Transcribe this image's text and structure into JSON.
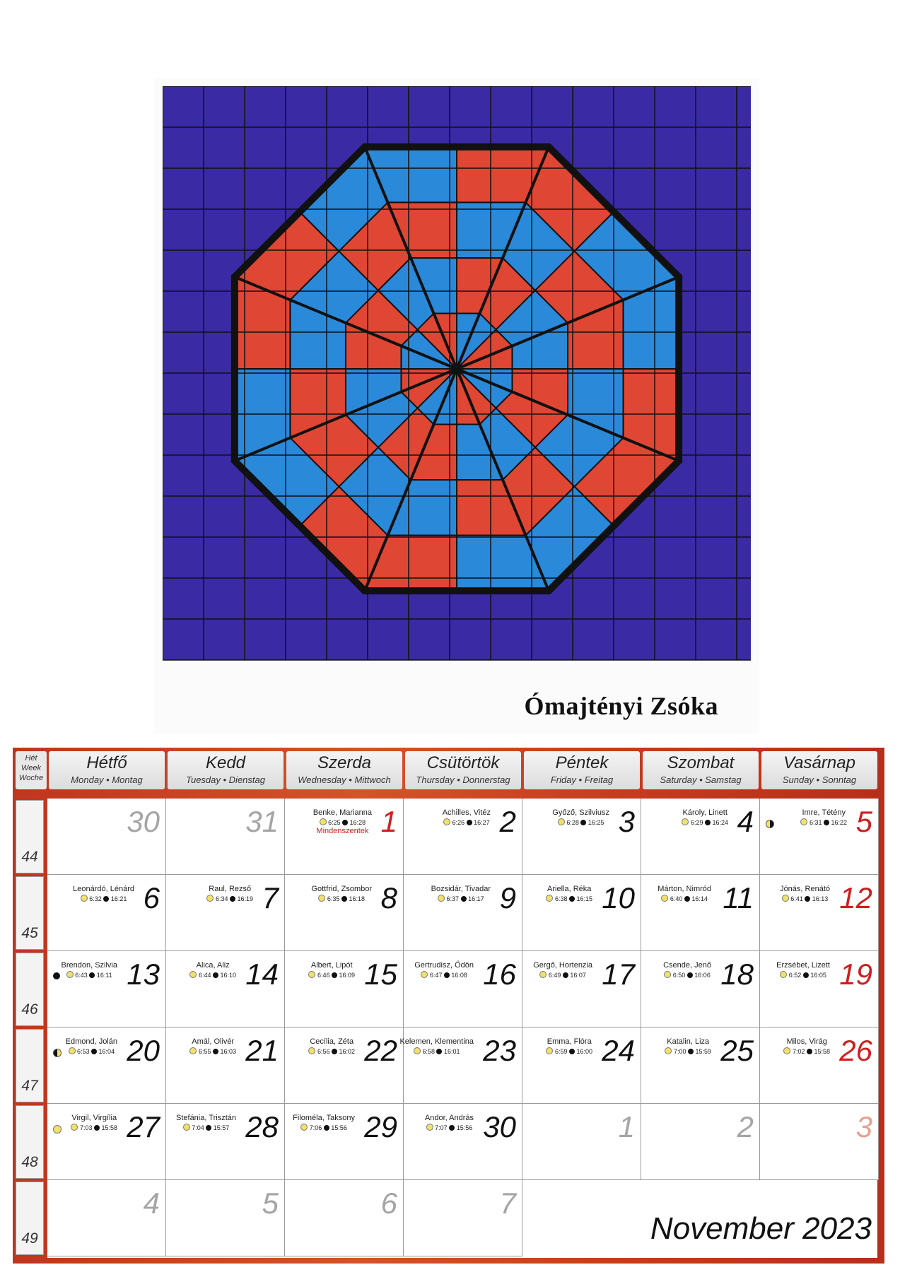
{
  "artwork": {
    "artist": "Ómajtényi Zsóka",
    "colors": {
      "background": "#3a2aa4",
      "red": "#e8482e",
      "blue": "#2a8fdc",
      "dark": "#111111"
    }
  },
  "calendar": {
    "week_header": [
      "Hét",
      "Week",
      "Woche"
    ],
    "days": [
      {
        "hu": "Hétfő",
        "en": "Monday • Montag"
      },
      {
        "hu": "Kedd",
        "en": "Tuesday • Dienstag"
      },
      {
        "hu": "Szerda",
        "en": "Wednesday • Mittwoch"
      },
      {
        "hu": "Csütörtök",
        "en": "Thursday • Donnerstag"
      },
      {
        "hu": "Péntek",
        "en": "Friday • Freitag"
      },
      {
        "hu": "Szombat",
        "en": "Saturday • Samstag"
      },
      {
        "hu": "Vasárnap",
        "en": "Sunday • Sonntag"
      }
    ],
    "weeks": [
      "44",
      "45",
      "46",
      "47",
      "48",
      "49"
    ],
    "month_label": "November 2023",
    "cells": [
      [
        {
          "day": "30",
          "style": "gray"
        },
        {
          "day": "31",
          "style": "gray"
        },
        {
          "day": "1",
          "style": "red",
          "names": "Benke, Marianna",
          "rise": "6:25",
          "set": "16:28",
          "holiday": "Mindenszentek"
        },
        {
          "day": "2",
          "names": "Achilles, Vitéz",
          "rise": "6:26",
          "set": "16:27"
        },
        {
          "day": "3",
          "names": "Győző, Szilviusz",
          "rise": "6:28",
          "set": "16:25"
        },
        {
          "day": "4",
          "names": "Károly, Linett",
          "rise": "6:29",
          "set": "16:24"
        },
        {
          "day": "5",
          "style": "red",
          "names": "Imre, Tétény",
          "rise": "6:31",
          "set": "16:22",
          "moon": "last"
        }
      ],
      [
        {
          "day": "6",
          "names": "Leonárdó, Lénárd",
          "rise": "6:32",
          "set": "16:21"
        },
        {
          "day": "7",
          "names": "Raul, Rezső",
          "rise": "6:34",
          "set": "16:19"
        },
        {
          "day": "8",
          "names": "Gottfrid, Zsombor",
          "rise": "6:35",
          "set": "16:18"
        },
        {
          "day": "9",
          "names": "Bozsidár, Tivadar",
          "rise": "6:37",
          "set": "16:17"
        },
        {
          "day": "10",
          "names": "Ariella, Réka",
          "rise": "6:38",
          "set": "16:15"
        },
        {
          "day": "11",
          "names": "Márton, Nimród",
          "rise": "6:40",
          "set": "16:14"
        },
        {
          "day": "12",
          "style": "red",
          "names": "Jónás, Renátó",
          "rise": "6:41",
          "set": "16:13"
        }
      ],
      [
        {
          "day": "13",
          "names": "Brendon, Szilvia",
          "rise": "6:43",
          "set": "16:11",
          "moon": "new"
        },
        {
          "day": "14",
          "names": "Alica, Aliz",
          "rise": "6:44",
          "set": "16:10"
        },
        {
          "day": "15",
          "names": "Albert, Lipót",
          "rise": "6:46",
          "set": "16:09"
        },
        {
          "day": "16",
          "names": "Gertrudisz, Ödön",
          "rise": "6:47",
          "set": "16:08"
        },
        {
          "day": "17",
          "names": "Gergő, Hortenzia",
          "rise": "6:49",
          "set": "16:07"
        },
        {
          "day": "18",
          "names": "Csende, Jenő",
          "rise": "6:50",
          "set": "16:06"
        },
        {
          "day": "19",
          "style": "red",
          "names": "Erzsébet, Lizett",
          "rise": "6:52",
          "set": "16:05"
        }
      ],
      [
        {
          "day": "20",
          "names": "Edmond, Jolán",
          "rise": "6:53",
          "set": "16:04",
          "moon": "first"
        },
        {
          "day": "21",
          "names": "Amál, Olivér",
          "rise": "6:55",
          "set": "16:03"
        },
        {
          "day": "22",
          "names": "Cecília, Zéta",
          "rise": "6:56",
          "set": "16:02"
        },
        {
          "day": "23",
          "names": "Kelemen, Klementina",
          "rise": "6:58",
          "set": "16:01"
        },
        {
          "day": "24",
          "names": "Emma, Flóra",
          "rise": "6:59",
          "set": "16:00"
        },
        {
          "day": "25",
          "names": "Katalin, Liza",
          "rise": "7:00",
          "set": "15:59"
        },
        {
          "day": "26",
          "style": "red",
          "names": "Milos, Virág",
          "rise": "7:02",
          "set": "15:58"
        }
      ],
      [
        {
          "day": "27",
          "names": "Virgil, Virgília",
          "rise": "7:03",
          "set": "15:58",
          "moon": "full"
        },
        {
          "day": "28",
          "names": "Stefánia, Trisztán",
          "rise": "7:04",
          "set": "15:57"
        },
        {
          "day": "29",
          "names": "Filoméla, Taksony",
          "rise": "7:06",
          "set": "15:56"
        },
        {
          "day": "30",
          "names": "Andor, András",
          "rise": "7:07",
          "set": "15:56"
        },
        {
          "day": "1",
          "style": "gray"
        },
        {
          "day": "2",
          "style": "gray"
        },
        {
          "day": "3",
          "style": "pink"
        }
      ],
      [
        {
          "day": "4",
          "style": "gray"
        },
        {
          "day": "5",
          "style": "gray"
        },
        {
          "day": "6",
          "style": "gray"
        },
        {
          "day": "7",
          "style": "gray"
        }
      ]
    ]
  }
}
